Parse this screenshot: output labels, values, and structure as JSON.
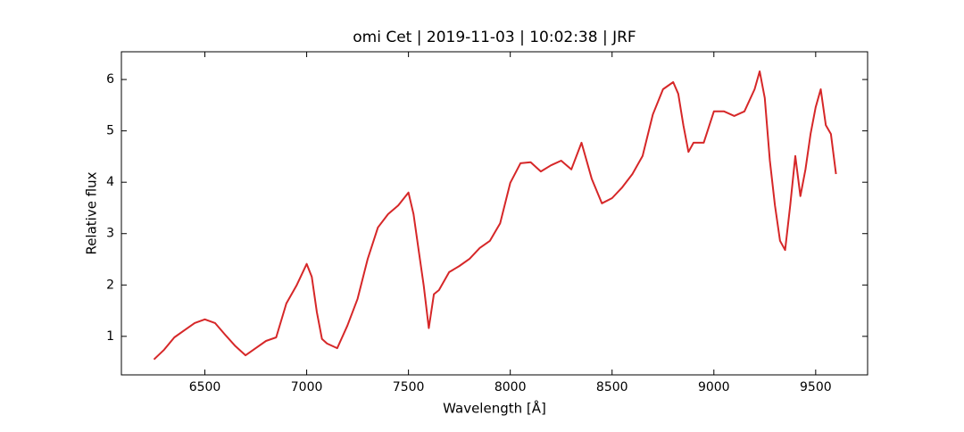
{
  "chart_data": {
    "type": "line",
    "title": "omi Cet | 2019-11-03 | 10:02:38 | JRF",
    "xlabel": "Wavelength [Å]",
    "ylabel": "Relative flux",
    "xlim": [
      6090,
      9755
    ],
    "ylim": [
      0.25,
      6.54
    ],
    "xticks": [
      6500,
      7000,
      7500,
      8000,
      8500,
      9000,
      9500
    ],
    "yticks": [
      1,
      2,
      3,
      4,
      5,
      6
    ],
    "grid": false,
    "x": [
      6250,
      6300,
      6350,
      6400,
      6450,
      6500,
      6550,
      6600,
      6650,
      6700,
      6750,
      6800,
      6850,
      6900,
      6950,
      7000,
      7025,
      7050,
      7075,
      7100,
      7150,
      7200,
      7250,
      7300,
      7350,
      7400,
      7450,
      7500,
      7525,
      7550,
      7575,
      7600,
      7625,
      7650,
      7700,
      7750,
      7800,
      7850,
      7900,
      7950,
      8000,
      8050,
      8100,
      8150,
      8200,
      8250,
      8300,
      8350,
      8400,
      8450,
      8500,
      8550,
      8600,
      8650,
      8700,
      8750,
      8800,
      8825,
      8850,
      8875,
      8900,
      8950,
      9000,
      9050,
      9100,
      9150,
      9200,
      9225,
      9250,
      9275,
      9300,
      9325,
      9350,
      9375,
      9400,
      9425,
      9450,
      9475,
      9500,
      9525,
      9550,
      9575,
      9600
    ],
    "series": [
      {
        "color": "#d62728",
        "values": [
          0.55,
          0.74,
          0.98,
          1.12,
          1.26,
          1.33,
          1.26,
          1.03,
          0.81,
          0.63,
          0.77,
          0.91,
          0.98,
          1.64,
          1.99,
          2.41,
          2.16,
          1.47,
          0.95,
          0.86,
          0.77,
          1.21,
          1.73,
          2.51,
          3.12,
          3.38,
          3.55,
          3.8,
          3.38,
          2.68,
          1.99,
          1.16,
          1.82,
          1.9,
          2.25,
          2.37,
          2.51,
          2.72,
          2.86,
          3.2,
          3.99,
          4.37,
          4.39,
          4.21,
          4.33,
          4.42,
          4.25,
          4.77,
          4.07,
          3.59,
          3.69,
          3.9,
          4.16,
          4.51,
          5.32,
          5.81,
          5.95,
          5.72,
          5.11,
          4.59,
          4.77,
          4.77,
          5.38,
          5.38,
          5.29,
          5.38,
          5.81,
          6.16,
          5.64,
          4.42,
          3.55,
          2.86,
          2.68,
          3.55,
          4.51,
          3.73,
          4.25,
          4.94,
          5.46,
          5.81,
          5.11,
          4.94,
          4.16
        ]
      }
    ]
  }
}
